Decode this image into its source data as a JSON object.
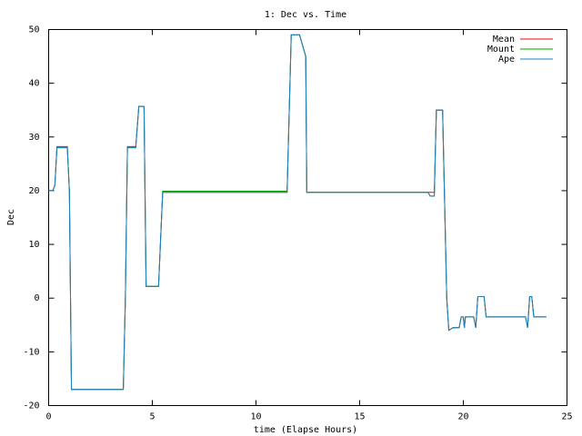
{
  "chart_data": {
    "type": "line",
    "title": "1: Dec vs. Time",
    "x_label": "time (Elapse Hours)",
    "y_label": "Dec",
    "x": [
      0,
      0.2,
      0.3,
      0.4,
      0.9,
      1.0,
      1.1,
      3.6,
      3.7,
      3.8,
      4.2,
      4.35,
      4.6,
      4.7,
      5.3,
      5.5,
      11.5,
      11.7,
      12.1,
      12.4,
      12.45,
      18.3,
      18.4,
      18.6,
      18.7,
      19.0,
      19.2,
      19.3,
      19.5,
      19.8,
      19.9,
      20.0,
      20.05,
      20.1,
      20.5,
      20.6,
      20.7,
      21.0,
      21.1,
      23.0,
      23.1,
      23.2,
      23.3,
      23.4,
      24.0
    ],
    "series": [
      {
        "name": "Mean",
        "color": "#ff0000",
        "values": [
          20,
          20,
          21,
          28.2,
          28.2,
          20,
          -17,
          -17,
          0,
          28.2,
          28.2,
          35.7,
          35.7,
          2.2,
          2.2,
          19.7,
          19.7,
          49,
          49,
          45,
          19.7,
          19.7,
          19.7,
          19.7,
          35,
          35,
          0,
          -6,
          -5.5,
          -5.5,
          -3.5,
          -3.5,
          -5.5,
          -3.5,
          -3.5,
          -5.5,
          0.3,
          0.3,
          -3.5,
          -3.5,
          -5.5,
          0.3,
          0.3,
          -3.5,
          -3.5
        ]
      },
      {
        "name": "Mount",
        "color": "#00a000",
        "values": [
          20,
          20,
          21,
          28,
          28,
          20,
          -17,
          -17,
          0,
          28,
          28,
          35.7,
          35.7,
          2.2,
          2.2,
          19.9,
          19.9,
          49,
          49,
          45,
          19.7,
          19.7,
          19,
          19,
          35,
          35,
          0,
          -6,
          -5.5,
          -5.5,
          -3.5,
          -3.5,
          -5.5,
          -3.5,
          -3.5,
          -5.5,
          0.3,
          0.3,
          -3.5,
          -3.5,
          -5.5,
          0.3,
          0.3,
          -3.5,
          -3.5
        ]
      },
      {
        "name": "Ape",
        "color": "#1e7fc8",
        "values": [
          20,
          20,
          21,
          28,
          28,
          20,
          -17,
          -17,
          0,
          28,
          28,
          35.7,
          35.7,
          2.2,
          2.2,
          19.7,
          19.7,
          49,
          49,
          45,
          19.7,
          19.7,
          19,
          19,
          35,
          35,
          0,
          -6,
          -5.5,
          -5.5,
          -3.5,
          -3.5,
          -5.5,
          -3.5,
          -3.5,
          -5.5,
          0.3,
          0.3,
          -3.5,
          -3.5,
          -5.5,
          0.3,
          0.3,
          -3.5,
          -3.5
        ]
      }
    ],
    "xlim": [
      0,
      25
    ],
    "xticks": [
      0,
      5,
      10,
      15,
      20,
      25
    ],
    "ylim": [
      -20,
      50
    ],
    "yticks": [
      -20,
      -10,
      0,
      10,
      20,
      30,
      40,
      50
    ],
    "legend": "top-right"
  }
}
